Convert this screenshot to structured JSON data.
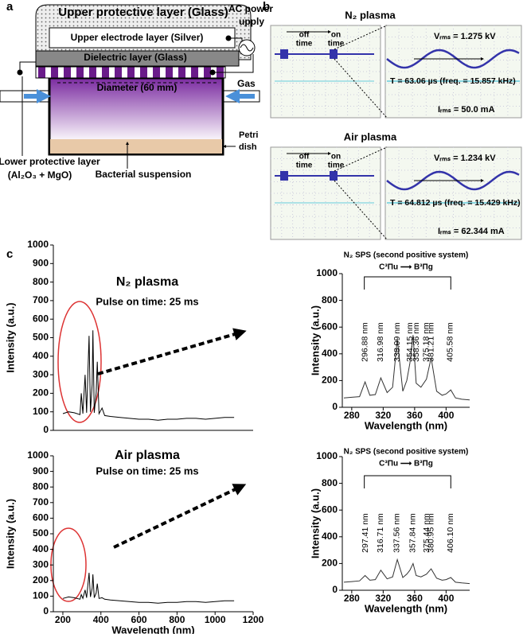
{
  "panel_labels": [
    "a",
    "b",
    "c"
  ],
  "panel_a": {
    "upper_protective": "Upper protective layer (Glass)",
    "upper_electrode": "Upper electrode layer (Silver)",
    "dielectric": "Dielectric layer (Glass)",
    "diameter": "Diameter (60 mm)",
    "ac_power": [
      "AC power",
      "upply"
    ],
    "gas": "Gas",
    "petri": [
      "Petri",
      "dish"
    ],
    "lower_protective": [
      "Lower protective layer",
      "(Al₂O₃ + MgO)"
    ],
    "bacterial": "Bacterial suspension"
  },
  "panel_b": {
    "scopes": [
      {
        "title": "N₂ plasma",
        "off_time": [
          "off",
          "time"
        ],
        "on_time": [
          "on",
          "time"
        ],
        "vrms": "Vᵣₘₛ = 1.275 kV",
        "period": "T = 63.06 µs (freq. = 15.857 kHz)",
        "irms": "Iᵣₘₛ = 50.0 mA"
      },
      {
        "title": "Air plasma",
        "off_time": [
          "off",
          "time"
        ],
        "on_time": [
          "on",
          "time"
        ],
        "vrms": "Vᵣₘₛ = 1.234 kV",
        "period": "T = 64.812 µs (freq. = 15.429 kHz)",
        "irms": "Iᵣₘₛ = 62.344 mA"
      }
    ]
  },
  "chart_data": [
    {
      "type": "line",
      "title": "N₂ plasma",
      "subtitle": "Pulse on time: 25 ms",
      "ylabel": "Intensity (a.u.)",
      "color": "#000000",
      "x": [
        200,
        230,
        260,
        290,
        297,
        305,
        317,
        325,
        338,
        345,
        354,
        358,
        365,
        375,
        381,
        390,
        406,
        420,
        450,
        500,
        550,
        600,
        650,
        700,
        750,
        800,
        850,
        900,
        950,
        1000,
        1050,
        1100
      ],
      "values": [
        90,
        100,
        95,
        85,
        200,
        90,
        300,
        95,
        510,
        100,
        250,
        540,
        95,
        200,
        370,
        90,
        120,
        80,
        75,
        70,
        65,
        60,
        60,
        55,
        60,
        60,
        65,
        65,
        60,
        65,
        70,
        70
      ],
      "xlim": [
        150,
        1200
      ],
      "ylim": [
        0,
        1000
      ],
      "yticks": [
        0,
        100,
        200,
        300,
        400,
        500,
        600,
        700,
        800,
        900,
        1000
      ]
    },
    {
      "type": "line",
      "title": "Air plasma",
      "subtitle": "Pulse on time: 25 ms",
      "ylabel": "Intensity (a.u.)",
      "xlabel": "Wavelength (nm)",
      "color": "#000000",
      "x": [
        200,
        230,
        260,
        290,
        297,
        305,
        317,
        325,
        338,
        345,
        354,
        358,
        365,
        375,
        381,
        390,
        406,
        420,
        450,
        500,
        550,
        600,
        650,
        700,
        750,
        800,
        850,
        900,
        950,
        1000,
        1050,
        1100
      ],
      "values": [
        85,
        95,
        90,
        80,
        110,
        85,
        140,
        90,
        250,
        95,
        150,
        240,
        90,
        120,
        180,
        85,
        90,
        80,
        75,
        70,
        65,
        60,
        60,
        55,
        60,
        60,
        65,
        65,
        60,
        65,
        70,
        70
      ],
      "xlim": [
        150,
        1200
      ],
      "ylim": [
        0,
        1000
      ],
      "xticks": [
        200,
        400,
        600,
        800,
        1000,
        1200
      ],
      "yticks": [
        0,
        100,
        200,
        300,
        400,
        500,
        600,
        700,
        800,
        900,
        1000
      ]
    },
    {
      "type": "line",
      "title": "N₂ SPS (second positive system)",
      "subtitle": "C³Πu ⟶ B³Πg",
      "ylabel": "Intensity (a.u.)",
      "xlabel": "Wavelength (nm)",
      "color": "#333333",
      "x": [
        270,
        280,
        290,
        297,
        303,
        310,
        317,
        325,
        332,
        338,
        345,
        350,
        354,
        358,
        362,
        368,
        375,
        381,
        388,
        395,
        400,
        406,
        412,
        420,
        430
      ],
      "values": [
        70,
        75,
        80,
        190,
        90,
        95,
        220,
        110,
        150,
        510,
        120,
        200,
        330,
        540,
        180,
        150,
        210,
        370,
        120,
        90,
        100,
        130,
        70,
        60,
        55
      ],
      "peak_labels": [
        "296.88 nm",
        "316.98 nm",
        "338.09 nm",
        "354.15 nm",
        "358.36 nm",
        "375.18 nm",
        "381.21 nm",
        "405.58 nm"
      ],
      "xlim": [
        268,
        430
      ],
      "ylim": [
        0,
        1000
      ],
      "xticks": [
        280,
        320,
        360,
        400
      ],
      "yticks": [
        0,
        200,
        400,
        600,
        800,
        1000
      ]
    },
    {
      "type": "line",
      "title": "N₂ SPS (second positive system)",
      "subtitle": "C³Πu ⟶ B³Πg",
      "ylabel": "Intensity (a.u.)",
      "xlabel": "Wavelength (nm)",
      "color": "#333333",
      "x": [
        270,
        280,
        290,
        297,
        303,
        310,
        317,
        325,
        332,
        338,
        345,
        350,
        354,
        358,
        362,
        368,
        375,
        381,
        388,
        395,
        400,
        406,
        412,
        420,
        430
      ],
      "values": [
        60,
        65,
        70,
        110,
        75,
        80,
        150,
        85,
        100,
        230,
        95,
        120,
        150,
        200,
        110,
        100,
        120,
        160,
        90,
        75,
        80,
        95,
        60,
        55,
        50
      ],
      "peak_labels": [
        "297.41 nm",
        "316.71 nm",
        "337.56 nm",
        "357.84 nm",
        "375.44 nm",
        "380.95 nm",
        "406.10 nm"
      ],
      "xlim": [
        268,
        430
      ],
      "ylim": [
        0,
        1000
      ],
      "xticks": [
        280,
        320,
        360,
        400
      ],
      "yticks": [
        0,
        200,
        400,
        600,
        800,
        1000
      ]
    }
  ]
}
